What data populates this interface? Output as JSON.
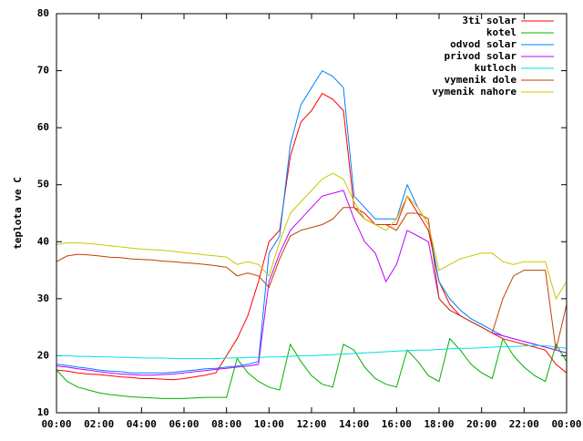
{
  "chart_data": {
    "type": "line",
    "y_label": "teplota ve C",
    "x": [
      0,
      0.5,
      1,
      1.5,
      2,
      2.5,
      3,
      3.5,
      4,
      4.5,
      5,
      5.5,
      6,
      6.5,
      7,
      7.5,
      8,
      8.5,
      9,
      9.5,
      10,
      10.5,
      11,
      11.5,
      12,
      12.5,
      13,
      13.5,
      14,
      14.5,
      15,
      15.5,
      16,
      16.5,
      17,
      17.5,
      18,
      18.5,
      19,
      19.5,
      20,
      20.5,
      21,
      21.5,
      22,
      22.5,
      23,
      23.5,
      24
    ],
    "xlim": [
      0,
      24
    ],
    "xticks": [
      {
        "value": 0,
        "label": "00:00"
      },
      {
        "value": 2,
        "label": "02:00"
      },
      {
        "value": 4,
        "label": "04:00"
      },
      {
        "value": 6,
        "label": "06:00"
      },
      {
        "value": 8,
        "label": "08:00"
      },
      {
        "value": 10,
        "label": "10:00"
      },
      {
        "value": 12,
        "label": "12:00"
      },
      {
        "value": 14,
        "label": "14:00"
      },
      {
        "value": 16,
        "label": "16:00"
      },
      {
        "value": 18,
        "label": "18:00"
      },
      {
        "value": 20,
        "label": "20:00"
      },
      {
        "value": 22,
        "label": "22:00"
      },
      {
        "value": 24,
        "label": "00:00"
      }
    ],
    "ylim": [
      10,
      80
    ],
    "yticks": [
      10,
      20,
      30,
      40,
      50,
      60,
      70,
      80
    ],
    "legend": "top-right",
    "series": [
      {
        "name": "3ti solar",
        "color": "#ff0000",
        "values": [
          17.5,
          17.3,
          17,
          16.8,
          16.7,
          16.5,
          16.3,
          16.2,
          16,
          16,
          15.9,
          15.8,
          16,
          16.3,
          16.6,
          17,
          20,
          23,
          27,
          33,
          40,
          42,
          55,
          61,
          63,
          66,
          65,
          63,
          46,
          45,
          43,
          43,
          43,
          48,
          45,
          42,
          33,
          29,
          27,
          26,
          25,
          24,
          23,
          22.5,
          22,
          21.5,
          21,
          18.5,
          17
        ]
      },
      {
        "name": "kotel",
        "color": "#00b000",
        "values": [
          17.5,
          15.5,
          14.5,
          14,
          13.5,
          13.2,
          13,
          12.8,
          12.7,
          12.6,
          12.5,
          12.5,
          12.5,
          12.6,
          12.7,
          12.7,
          12.7,
          19.5,
          17,
          15.5,
          14.5,
          14,
          22,
          19,
          16.5,
          15,
          14.5,
          22,
          21,
          18,
          16,
          15,
          14.5,
          21,
          19,
          16.5,
          15.5,
          23,
          21,
          18.5,
          17,
          16,
          23,
          20,
          18,
          16.5,
          15.5,
          22,
          19
        ]
      },
      {
        "name": "odvod solar",
        "color": "#0080ff",
        "values": [
          18.5,
          18.3,
          18,
          17.8,
          17.5,
          17.3,
          17.2,
          17,
          17,
          17,
          17,
          17.1,
          17.3,
          17.5,
          17.7,
          17.8,
          18,
          18.2,
          18.5,
          19,
          38,
          41,
          57,
          64,
          67,
          70,
          69,
          67,
          48,
          46,
          44,
          44,
          44,
          50,
          46,
          43,
          33,
          30,
          28,
          26.5,
          25.5,
          24.5,
          23.5,
          23,
          22.5,
          22,
          21.5,
          21,
          20.5
        ]
      },
      {
        "name": "privod solar",
        "color": "#c000ff",
        "values": [
          18.2,
          18,
          17.7,
          17.5,
          17.2,
          17,
          16.8,
          16.7,
          16.6,
          16.6,
          16.7,
          16.8,
          17,
          17.2,
          17.4,
          17.6,
          17.8,
          18,
          18.2,
          18.5,
          33,
          38,
          42,
          44,
          46,
          48,
          48.5,
          49,
          44,
          40,
          38,
          33,
          36,
          42,
          41,
          40,
          30,
          28,
          27,
          26,
          25,
          24,
          23.5,
          23,
          22.5,
          22,
          21.5,
          21,
          20.5
        ]
      },
      {
        "name": "kutloch",
        "color": "#00e0e0",
        "values": [
          20,
          20,
          19.9,
          19.9,
          19.8,
          19.8,
          19.7,
          19.7,
          19.6,
          19.6,
          19.6,
          19.5,
          19.5,
          19.5,
          19.5,
          19.5,
          19.6,
          19.6,
          19.7,
          19.7,
          19.8,
          19.8,
          19.9,
          20,
          20,
          20.1,
          20.2,
          20.3,
          20.4,
          20.5,
          20.6,
          20.7,
          20.8,
          20.9,
          21,
          21,
          21.1,
          21.2,
          21.3,
          21.3,
          21.4,
          21.5,
          21.6,
          21.6,
          21.7,
          21.8,
          21.8,
          21.5,
          21.3
        ]
      },
      {
        "name": "vymenik dole",
        "color": "#c04000",
        "values": [
          36.5,
          37.5,
          37.8,
          37.7,
          37.5,
          37.3,
          37.2,
          37,
          36.9,
          36.8,
          36.6,
          36.5,
          36.3,
          36.2,
          36,
          35.8,
          35.5,
          34,
          34.5,
          34,
          32,
          37,
          41,
          42,
          42.5,
          43,
          44,
          46,
          46,
          44,
          43,
          43,
          42,
          45,
          45,
          44,
          30,
          28,
          27,
          26,
          25,
          24,
          30,
          34,
          35,
          35,
          35,
          21,
          29
        ]
      },
      {
        "name": "vymenik nahore",
        "color": "#c8c800",
        "values": [
          39.5,
          39.8,
          39.8,
          39.7,
          39.5,
          39.3,
          39.1,
          38.9,
          38.7,
          38.6,
          38.5,
          38.3,
          38.1,
          37.9,
          37.7,
          37.5,
          37.3,
          36,
          36.5,
          36,
          34,
          40,
          45,
          47,
          49,
          51,
          52,
          51,
          47,
          44,
          43,
          42,
          44,
          48,
          46,
          43,
          35,
          36,
          37,
          37.5,
          38,
          38,
          36.5,
          36,
          36.5,
          36.5,
          36.5,
          30,
          33
        ]
      }
    ]
  }
}
